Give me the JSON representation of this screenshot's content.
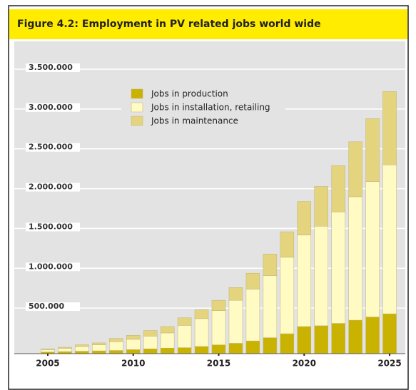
{
  "chart_data": {
    "type": "stacked-bar",
    "title": "Figure 4.2: Employment in PV related jobs world wide",
    "x": [
      2005,
      2006,
      2007,
      2008,
      2009,
      2010,
      2011,
      2012,
      2013,
      2014,
      2015,
      2016,
      2017,
      2018,
      2019,
      2020,
      2021,
      2022,
      2023,
      2024,
      2025
    ],
    "xlim": [
      2004,
      2026
    ],
    "xticks": [
      2005,
      2010,
      2015,
      2020,
      2025
    ],
    "series": [
      {
        "name": "Jobs in production",
        "color": "#c9b300",
        "values": [
          20000,
          25000,
          30000,
          35000,
          40000,
          50000,
          60000,
          70000,
          75000,
          90000,
          110000,
          130000,
          160000,
          200000,
          250000,
          340000,
          350000,
          380000,
          420000,
          460000,
          500000
        ]
      },
      {
        "name": "Jobs in installation, retailing",
        "color": "#fffbc2",
        "values": [
          30000,
          40000,
          60000,
          75000,
          110000,
          130000,
          160000,
          190000,
          280000,
          350000,
          430000,
          540000,
          650000,
          780000,
          960000,
          1150000,
          1250000,
          1400000,
          1550000,
          1700000,
          1870000
        ]
      },
      {
        "name": "Jobs in maintenance",
        "color": "#e5d47e",
        "values": [
          10000,
          15000,
          20000,
          25000,
          40000,
          50000,
          70000,
          80000,
          95000,
          110000,
          130000,
          160000,
          200000,
          270000,
          320000,
          420000,
          500000,
          580000,
          690000,
          790000,
          920000
        ]
      }
    ],
    "ylim": [
      0,
      3500000
    ],
    "yticks": [
      {
        "value": 500000,
        "label": "500.000"
      },
      {
        "value": 1000000,
        "label": "1.000.000"
      },
      {
        "value": 1500000,
        "label": "1.500.000"
      },
      {
        "value": 2000000,
        "label": "2.000.000"
      },
      {
        "value": 2500000,
        "label": "2.500.000"
      },
      {
        "value": 3000000,
        "label": "3.000.000"
      },
      {
        "value": 3500000,
        "label": "3.500.000"
      }
    ],
    "grid": true
  }
}
